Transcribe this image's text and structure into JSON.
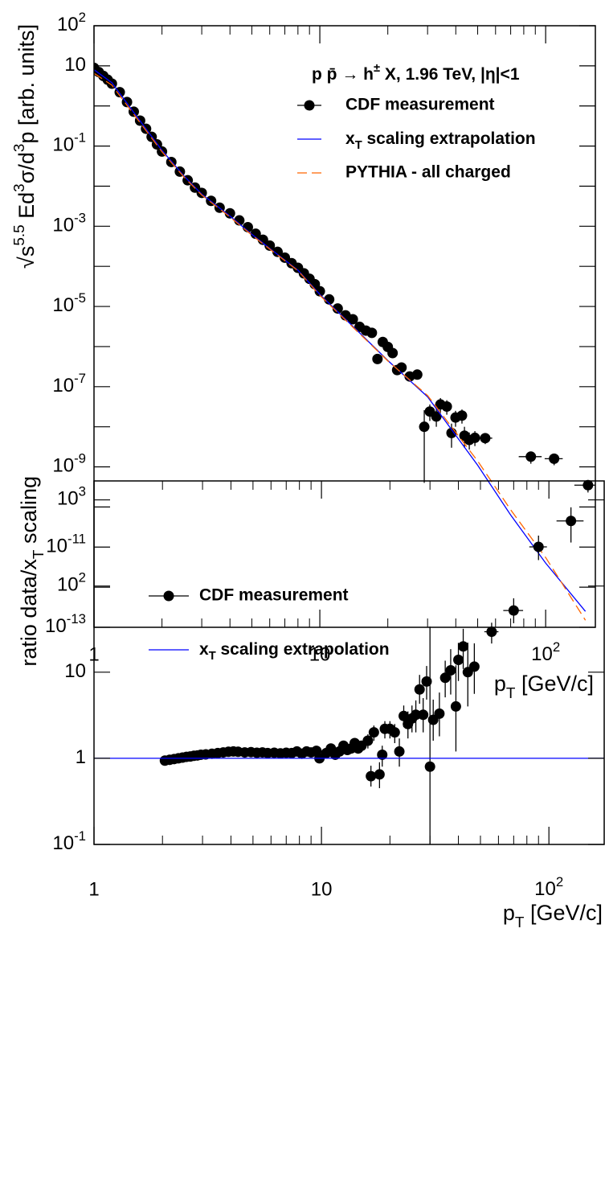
{
  "chart_data": [
    {
      "type": "line",
      "xscale": "log",
      "yscale": "log",
      "xlim": [
        1,
        166
      ],
      "ylim": [
        1e-13,
        100
      ],
      "xticks": [
        1,
        10,
        {
          "value": 100,
          "label": "10",
          "sup": "2"
        }
      ],
      "xminor": [
        2,
        3,
        4,
        5,
        6,
        7,
        8,
        9,
        20,
        30,
        40,
        50,
        60,
        70,
        80,
        90
      ],
      "yticks": [
        {
          "value": 100,
          "label": "10",
          "sup": "2"
        },
        10,
        {
          "value": 0.1,
          "label": "10",
          "sup": "-1"
        },
        {
          "value": 0.001,
          "label": "10",
          "sup": "-3"
        },
        {
          "value": 1e-05,
          "label": "10",
          "sup": "-5"
        },
        {
          "value": 1e-07,
          "label": "10",
          "sup": "-7"
        },
        {
          "value": 1e-09,
          "label": "10",
          "sup": "-9"
        },
        {
          "value": 1e-11,
          "label": "10",
          "sup": "-11"
        },
        {
          "value": 1e-13,
          "label": "10",
          "sup": "-13"
        }
      ],
      "yminor": [
        1,
        0.01,
        0.0001,
        1e-06,
        1e-08,
        1e-10,
        1e-12
      ],
      "xlabel": [
        {
          "text": "p"
        },
        {
          "text": "T",
          "sub": true
        },
        {
          "text": " [GeV/c]"
        }
      ],
      "ylabel": [
        {
          "text": "√s"
        },
        {
          "text": "5.5",
          "sup": true
        },
        {
          "text": " Ed"
        },
        {
          "text": "3",
          "sup": true
        },
        {
          "text": "σ/d"
        },
        {
          "text": "3",
          "sup": true
        },
        {
          "text": "p [arb. units]"
        }
      ],
      "legend_title": [
        {
          "text": "p p̄ → h"
        },
        {
          "text": "±",
          "sup": true
        },
        {
          "text": " X, 1.96 TeV, |η|<1"
        }
      ],
      "series": [
        {
          "name": "CDF measurement",
          "color": "#000000",
          "style": "markers",
          "x": [
            1,
            1.05,
            1.1,
            1.15,
            1.2,
            1.3,
            1.4,
            1.5,
            1.6,
            1.7,
            1.8,
            1.9,
            2.0,
            2.2,
            2.4,
            2.6,
            2.8,
            3.0,
            3.3,
            3.6,
            4.0,
            4.4,
            4.8,
            5.2,
            5.6,
            6.0,
            6.5,
            7.0,
            7.5,
            8.0,
            8.5,
            9.0,
            9.5,
            10,
            11,
            12,
            13,
            14,
            15,
            16,
            17,
            18,
            19,
            20,
            21,
            22,
            23,
            25,
            27,
            29,
            30.7,
            32.8,
            34.2,
            36.5,
            38.3,
            39.9,
            42.6,
            43.7,
            45.9,
            48.6,
            54,
            86,
            109,
            154
          ],
          "values": [
            8.9,
            7.0,
            5.6,
            4.5,
            3.6,
            2.2,
            1.25,
            0.72,
            0.43,
            0.27,
            0.17,
            0.11,
            0.073,
            0.04,
            0.023,
            0.014,
            0.0092,
            0.0068,
            0.0043,
            0.0029,
            0.0021,
            0.0014,
            0.00095,
            0.00065,
            0.00046,
            0.00033,
            0.00023,
            0.000165,
            0.00012,
            9.2e-05,
            6.7e-05,
            4.9e-05,
            3.6e-05,
            2.4e-05,
            1.5e-05,
            8.9e-06,
            6e-06,
            4.8e-06,
            3.1e-06,
            2.5e-06,
            2.2e-06,
            4.9e-07,
            1.3e-06,
            9.8e-07,
            6.9e-07,
            2.6e-07,
            3e-07,
            1.8e-07,
            2e-07,
            1e-08,
            2.4e-08,
            1.8e-08,
            3.6e-08,
            3.2e-08,
            7e-09,
            1.7e-08,
            1.9e-08,
            6e-09,
            4.7e-09,
            5.3e-09,
            5.2e-09,
            1.8e-09,
            1.6e-09,
            3.5e-10
          ],
          "yerr_low": [
            null,
            null,
            null,
            null,
            null,
            null,
            null,
            null,
            null,
            null,
            null,
            null,
            null,
            null,
            null,
            null,
            null,
            null,
            null,
            null,
            null,
            null,
            null,
            null,
            null,
            null,
            null,
            null,
            null,
            null,
            null,
            null,
            null,
            null,
            null,
            null,
            null,
            null,
            null,
            null,
            null,
            null,
            null,
            null,
            null,
            null,
            null,
            null,
            null,
            9.6e-09,
            1e-08,
            8e-09,
            1.4e-08,
            1.2e-08,
            4e-09,
            7e-09,
            7e-09,
            3e-09,
            2e-09,
            2e-09,
            1.5e-09,
            6e-10,
            5e-10,
            1.2e-10
          ],
          "yerr_high": [
            null,
            null,
            null,
            null,
            null,
            null,
            null,
            null,
            null,
            null,
            null,
            null,
            null,
            null,
            null,
            null,
            null,
            null,
            null,
            null,
            null,
            null,
            null,
            null,
            null,
            null,
            null,
            null,
            null,
            null,
            null,
            null,
            null,
            null,
            null,
            null,
            null,
            null,
            null,
            null,
            null,
            null,
            null,
            null,
            null,
            null,
            null,
            null,
            null,
            1.6e-08,
            1.2e-08,
            1e-08,
            1.6e-08,
            1.4e-08,
            5e-09,
            8e-09,
            8e-09,
            4e-09,
            2.5e-09,
            2.5e-09,
            1.5e-09,
            6e-10,
            5e-10,
            1.2e-10
          ],
          "xerr": [
            null,
            null,
            null,
            null,
            null,
            null,
            null,
            null,
            null,
            null,
            null,
            null,
            null,
            null,
            null,
            null,
            null,
            null,
            null,
            null,
            null,
            null,
            null,
            null,
            null,
            null,
            null,
            null,
            null,
            null,
            null,
            null,
            null,
            null,
            null,
            null,
            null,
            null,
            null,
            null,
            null,
            null,
            null,
            null,
            null,
            null,
            null,
            null,
            null,
            null,
            null,
            null,
            null,
            null,
            null,
            null,
            null,
            null,
            null,
            null,
            4,
            10,
            10,
            20
          ]
        },
        {
          "name": [
            {
              "text": "x"
            },
            {
              "text": "T",
              "sub": true
            },
            {
              "text": " scaling extrapolation"
            }
          ],
          "color": "#0000ff",
          "style": "line",
          "x": [
            1,
            1.2,
            1.5,
            2,
            2.5,
            3,
            4,
            5,
            6,
            8,
            10,
            15,
            20,
            30,
            50,
            70,
            100,
            150
          ],
          "values": [
            8,
            3.8,
            0.69,
            0.078,
            0.018,
            0.0063,
            0.0018,
            0.00063,
            0.00028,
            8e-05,
            2e-05,
            2.2e-06,
            4.5e-07,
            5.6e-08,
            1.1e-09,
            6.3e-11,
            4e-12,
            2.5e-13
          ]
        },
        {
          "name": "PYTHIA - all charged",
          "color": "#ff6600",
          "style": "dashed",
          "x": [
            1,
            1.2,
            1.5,
            2,
            2.5,
            3,
            4,
            5,
            6,
            8,
            10,
            15,
            20,
            30,
            50,
            70,
            100,
            150
          ],
          "values": [
            6.5,
            3.3,
            0.62,
            0.072,
            0.017,
            0.006,
            0.0017,
            0.0006,
            0.00027,
            7.8e-05,
            1.9e-05,
            2.1e-06,
            4.4e-07,
            6e-08,
            1.4e-09,
            8.5e-11,
            5.5e-12,
            1.5e-13
          ]
        }
      ]
    },
    {
      "type": "line",
      "xscale": "log",
      "yscale": "log",
      "xlim": [
        1,
        175
      ],
      "ylim": [
        0.1,
        1660
      ],
      "xticks": [
        1,
        10,
        {
          "value": 100,
          "label": "10",
          "sup": "2"
        }
      ],
      "xminor": [
        2,
        3,
        4,
        5,
        6,
        7,
        8,
        9,
        20,
        30,
        40,
        50,
        60,
        70,
        80,
        90
      ],
      "yticks": [
        {
          "value": 0.1,
          "label": "10",
          "sup": "-1"
        },
        1,
        10,
        {
          "value": 100,
          "label": "10",
          "sup": "2"
        },
        {
          "value": 1000,
          "label": "10",
          "sup": "3"
        }
      ],
      "xlabel": [
        {
          "text": "p"
        },
        {
          "text": "T",
          "sub": true
        },
        {
          "text": " [GeV/c]"
        }
      ],
      "ylabel": [
        {
          "text": "ratio data/x"
        },
        {
          "text": "T",
          "sub": true
        },
        {
          "text": " scaling"
        }
      ],
      "series": [
        {
          "name": "CDF measurement",
          "color": "#000000",
          "style": "markers",
          "x": [
            2.05,
            2.15,
            2.25,
            2.35,
            2.45,
            2.55,
            2.65,
            2.75,
            2.85,
            2.95,
            3.1,
            3.3,
            3.5,
            3.7,
            3.9,
            4.1,
            4.3,
            4.6,
            4.9,
            5.2,
            5.5,
            5.8,
            6.2,
            6.6,
            7.0,
            7.4,
            7.8,
            8.2,
            8.6,
            9.0,
            9.5,
            9.8,
            10.5,
            11,
            11.5,
            12,
            12.5,
            13,
            13.5,
            14,
            14.5,
            15,
            16,
            16.5,
            17,
            18,
            18.5,
            19,
            20,
            21,
            22,
            23,
            24,
            25,
            26,
            27,
            28,
            29,
            30,
            31,
            33,
            35,
            37,
            39,
            40,
            42,
            44,
            47,
            56,
            70,
            90,
            125
          ],
          "values": [
            0.94,
            0.96,
            0.98,
            1.0,
            1.02,
            1.04,
            1.05,
            1.07,
            1.08,
            1.1,
            1.11,
            1.13,
            1.15,
            1.17,
            1.19,
            1.2,
            1.19,
            1.17,
            1.18,
            1.16,
            1.17,
            1.15,
            1.16,
            1.14,
            1.16,
            1.15,
            1.2,
            1.13,
            1.2,
            1.17,
            1.22,
            1.0,
            1.15,
            1.3,
            1.1,
            1.2,
            1.4,
            1.25,
            1.3,
            1.5,
            1.3,
            1.4,
            1.6,
            0.62,
            2.0,
            0.65,
            1.1,
            2.2,
            2.2,
            2.0,
            1.2,
            3.1,
            2.5,
            2.9,
            3.2,
            6.3,
            3.2,
            7.8,
            0.8,
            2.8,
            3.3,
            8.6,
            10.5,
            4.0,
            13.9,
            19.9,
            10,
            11.6,
            29.5,
            52,
            285,
            570
          ],
          "yerr_low": [
            null,
            null,
            null,
            null,
            null,
            null,
            null,
            null,
            null,
            null,
            null,
            null,
            null,
            null,
            null,
            null,
            null,
            null,
            null,
            null,
            null,
            null,
            null,
            null,
            null,
            null,
            null,
            null,
            null,
            null,
            null,
            null,
            0.1,
            0.1,
            0.1,
            0.1,
            0.12,
            0.12,
            0.12,
            0.15,
            0.15,
            0.2,
            0.3,
            0.15,
            0.4,
            0.2,
            0.3,
            0.5,
            0.5,
            0.5,
            0.4,
            0.8,
            0.8,
            0.9,
            1.2,
            2,
            1.2,
            3,
            0.8,
            1.2,
            1.5,
            3.5,
            5,
            2.8,
            6,
            9,
            6,
            6,
            8,
            15,
            85,
            250
          ],
          "yerr_high": [
            null,
            null,
            null,
            null,
            null,
            null,
            null,
            null,
            null,
            null,
            null,
            null,
            null,
            null,
            null,
            null,
            null,
            null,
            null,
            null,
            null,
            null,
            null,
            null,
            null,
            null,
            null,
            null,
            null,
            null,
            null,
            null,
            0.1,
            0.1,
            0.1,
            0.1,
            0.12,
            0.12,
            0.12,
            0.15,
            0.15,
            0.2,
            0.3,
            0.2,
            0.4,
            0.25,
            0.3,
            0.5,
            0.5,
            0.5,
            0.5,
            1,
            1,
            1.2,
            1.5,
            3,
            1.8,
            4,
            33,
            2,
            2.5,
            5,
            8,
            8,
            8,
            12,
            12,
            10,
            8,
            20,
            100,
            250
          ],
          "xerr": [
            null,
            null,
            null,
            null,
            null,
            null,
            null,
            null,
            null,
            null,
            null,
            null,
            null,
            null,
            null,
            null,
            null,
            null,
            null,
            null,
            null,
            null,
            null,
            null,
            null,
            null,
            null,
            null,
            null,
            null,
            null,
            null,
            null,
            null,
            null,
            null,
            null,
            null,
            null,
            null,
            null,
            null,
            null,
            null,
            null,
            null,
            null,
            null,
            null,
            null,
            null,
            null,
            null,
            null,
            null,
            null,
            null,
            null,
            null,
            null,
            null,
            null,
            null,
            null,
            null,
            null,
            null,
            null,
            4,
            7,
            8,
            17
          ]
        },
        {
          "name": [
            {
              "text": "x"
            },
            {
              "text": "T",
              "sub": true
            },
            {
              "text": " scaling extrapolation"
            }
          ],
          "color": "#0000ff",
          "style": "line",
          "x": [
            1,
            175
          ],
          "values": [
            1,
            1
          ]
        }
      ]
    }
  ]
}
